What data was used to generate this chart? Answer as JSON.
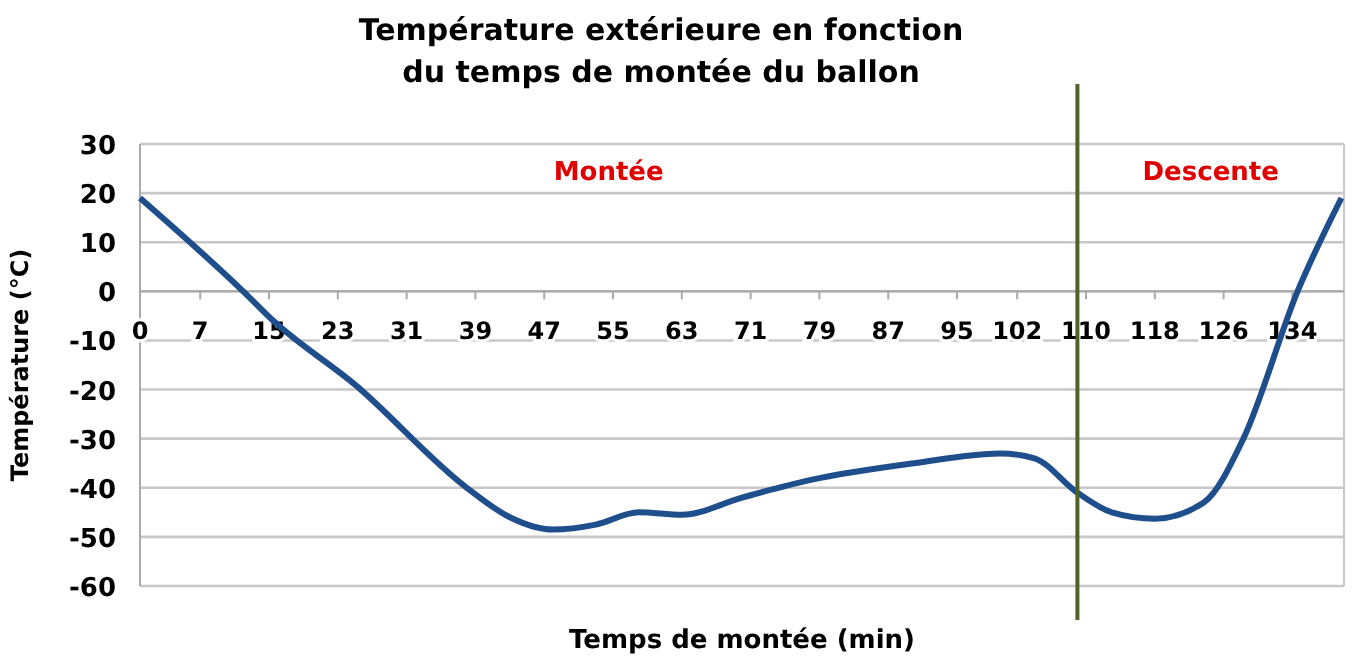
{
  "chart_data": {
    "type": "line",
    "title": "Température extérieure en fonction\ndu temps de montée du ballon",
    "xlabel": "Temps de montée (min)",
    "ylabel": "Température (°C)",
    "x": [
      0,
      12,
      15.5,
      25,
      38,
      43,
      48,
      53,
      58,
      63,
      70,
      78,
      90,
      100,
      104,
      109,
      113,
      118,
      123.7,
      128.3,
      134.6,
      139.7
    ],
    "series": [
      {
        "color": "#1f4e8c",
        "values": [
          19,
          0,
          -6,
          -19,
          -40,
          -46,
          -48.5,
          -47.5,
          -45,
          -45.5,
          -42,
          -38.4,
          -35,
          -33,
          -34,
          -41,
          -45,
          -46.3,
          -43,
          -30,
          0,
          19
        ]
      }
    ],
    "xlim": [
      0,
      140
    ],
    "xticks": [
      0,
      7,
      15,
      23,
      31,
      39,
      47,
      55,
      63,
      71,
      79,
      87,
      95,
      102,
      110,
      118,
      126,
      134
    ],
    "ylim": [
      -60,
      30
    ],
    "yticks": [
      -60,
      -50,
      -40,
      -30,
      -20,
      -10,
      0,
      10,
      20,
      30
    ],
    "grid": "y",
    "marker": "none",
    "line_style": "solid",
    "ref_lines": [
      {
        "axis": "x",
        "value": 109,
        "color": "#4f6228"
      }
    ],
    "annotations": [
      "Montée",
      "Descente"
    ]
  }
}
